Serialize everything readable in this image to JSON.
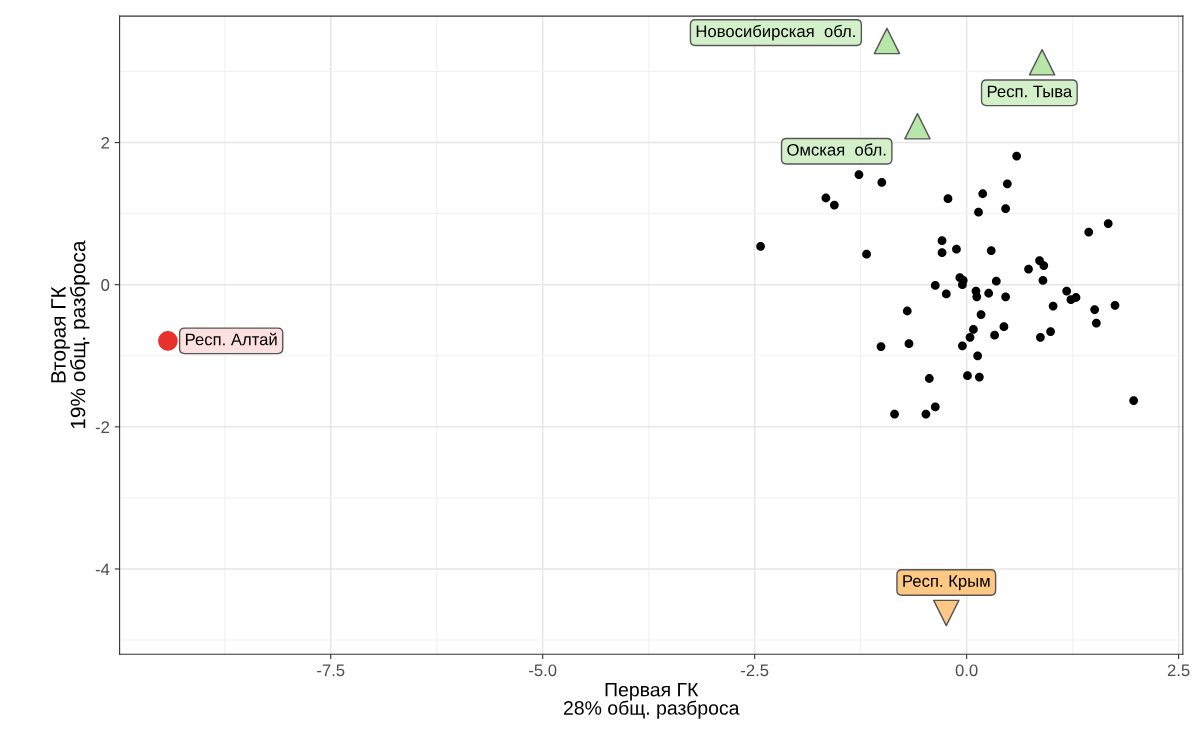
{
  "chart_data": {
    "type": "scatter",
    "xlabel": "Первая ГК\n28% общ. разброса",
    "ylabel": "Вторая ГК\n19% общ. разброса",
    "xlim": [
      -9.99,
      2.55
    ],
    "ylim": [
      -5.2,
      3.78
    ],
    "xticks": [
      {
        "value": -7.5,
        "label": "-7.5"
      },
      {
        "value": -5.0,
        "label": "-5.0"
      },
      {
        "value": -2.5,
        "label": "-2.5"
      },
      {
        "value": 0.0,
        "label": "0.0"
      },
      {
        "value": 2.5,
        "label": "2.5"
      }
    ],
    "yticks": [
      -4,
      -2,
      0,
      2
    ],
    "grid": true,
    "legend": false,
    "series": [
      {
        "color": "#000000",
        "marker": "circle",
        "x": [
          0.59,
          -1.27,
          -1.0,
          0.48,
          -1.66,
          -1.56,
          -0.22,
          0.19,
          0.14,
          0.46,
          1.67,
          1.44,
          -2.43,
          -1.18,
          -0.29,
          -0.12,
          -0.29,
          0.29,
          0.86,
          0.91,
          0.73,
          0.9,
          -0.08,
          -0.04,
          -0.05,
          0.35,
          -0.37,
          -0.24,
          0.11,
          0.12,
          0.26,
          0.46,
          1.18,
          1.23,
          1.29,
          1.02,
          1.51,
          1.75,
          1.53,
          -0.7,
          0.17,
          0.08,
          0.44,
          0.04,
          0.33,
          0.99,
          0.87,
          -1.01,
          -0.68,
          -0.05,
          0.13,
          -0.44,
          0.01,
          0.15,
          1.97,
          -0.85,
          -0.48,
          -0.37
        ],
        "values": [
          1.81,
          1.55,
          1.44,
          1.42,
          1.22,
          1.12,
          1.21,
          1.28,
          1.02,
          1.07,
          0.86,
          0.74,
          0.54,
          0.43,
          0.62,
          0.5,
          0.45,
          0.48,
          0.34,
          0.27,
          0.22,
          0.06,
          0.1,
          0.06,
          0.0,
          0.05,
          -0.01,
          -0.13,
          -0.09,
          -0.17,
          -0.12,
          -0.17,
          -0.09,
          -0.21,
          -0.18,
          -0.3,
          -0.35,
          -0.29,
          -0.54,
          -0.37,
          -0.42,
          -0.63,
          -0.59,
          -0.74,
          -0.71,
          -0.66,
          -0.74,
          -0.87,
          -0.83,
          -0.86,
          -1.0,
          -1.32,
          -1.28,
          -1.3,
          -1.63,
          -1.82,
          -1.82,
          -1.72
        ]
      },
      {
        "color": "#e8312a",
        "marker": "circle",
        "x": [
          -9.42
        ],
        "values": [
          -0.79
        ]
      },
      {
        "color": "#b8e6a8",
        "marker": "triangle",
        "x": [
          -0.94,
          0.89,
          -0.58
        ],
        "values": [
          3.43,
          3.13,
          2.23
        ]
      },
      {
        "color": "#fdc883",
        "marker": "triangle_down",
        "x": [
          -0.24
        ],
        "values": [
          -4.62
        ]
      }
    ],
    "annotations": [
      {
        "text": "Респ. Алтай",
        "x": -9.42,
        "y": -0.79
      },
      {
        "text": "Новосибирская  обл.",
        "x": -0.94,
        "y": 3.43
      },
      {
        "text": "Респ. Тыва",
        "x": 0.89,
        "y": 3.13
      },
      {
        "text": "Омская  обл.",
        "x": -0.58,
        "y": 2.23
      },
      {
        "text": "Респ. Крым",
        "x": -0.24,
        "y": -4.62
      }
    ]
  }
}
